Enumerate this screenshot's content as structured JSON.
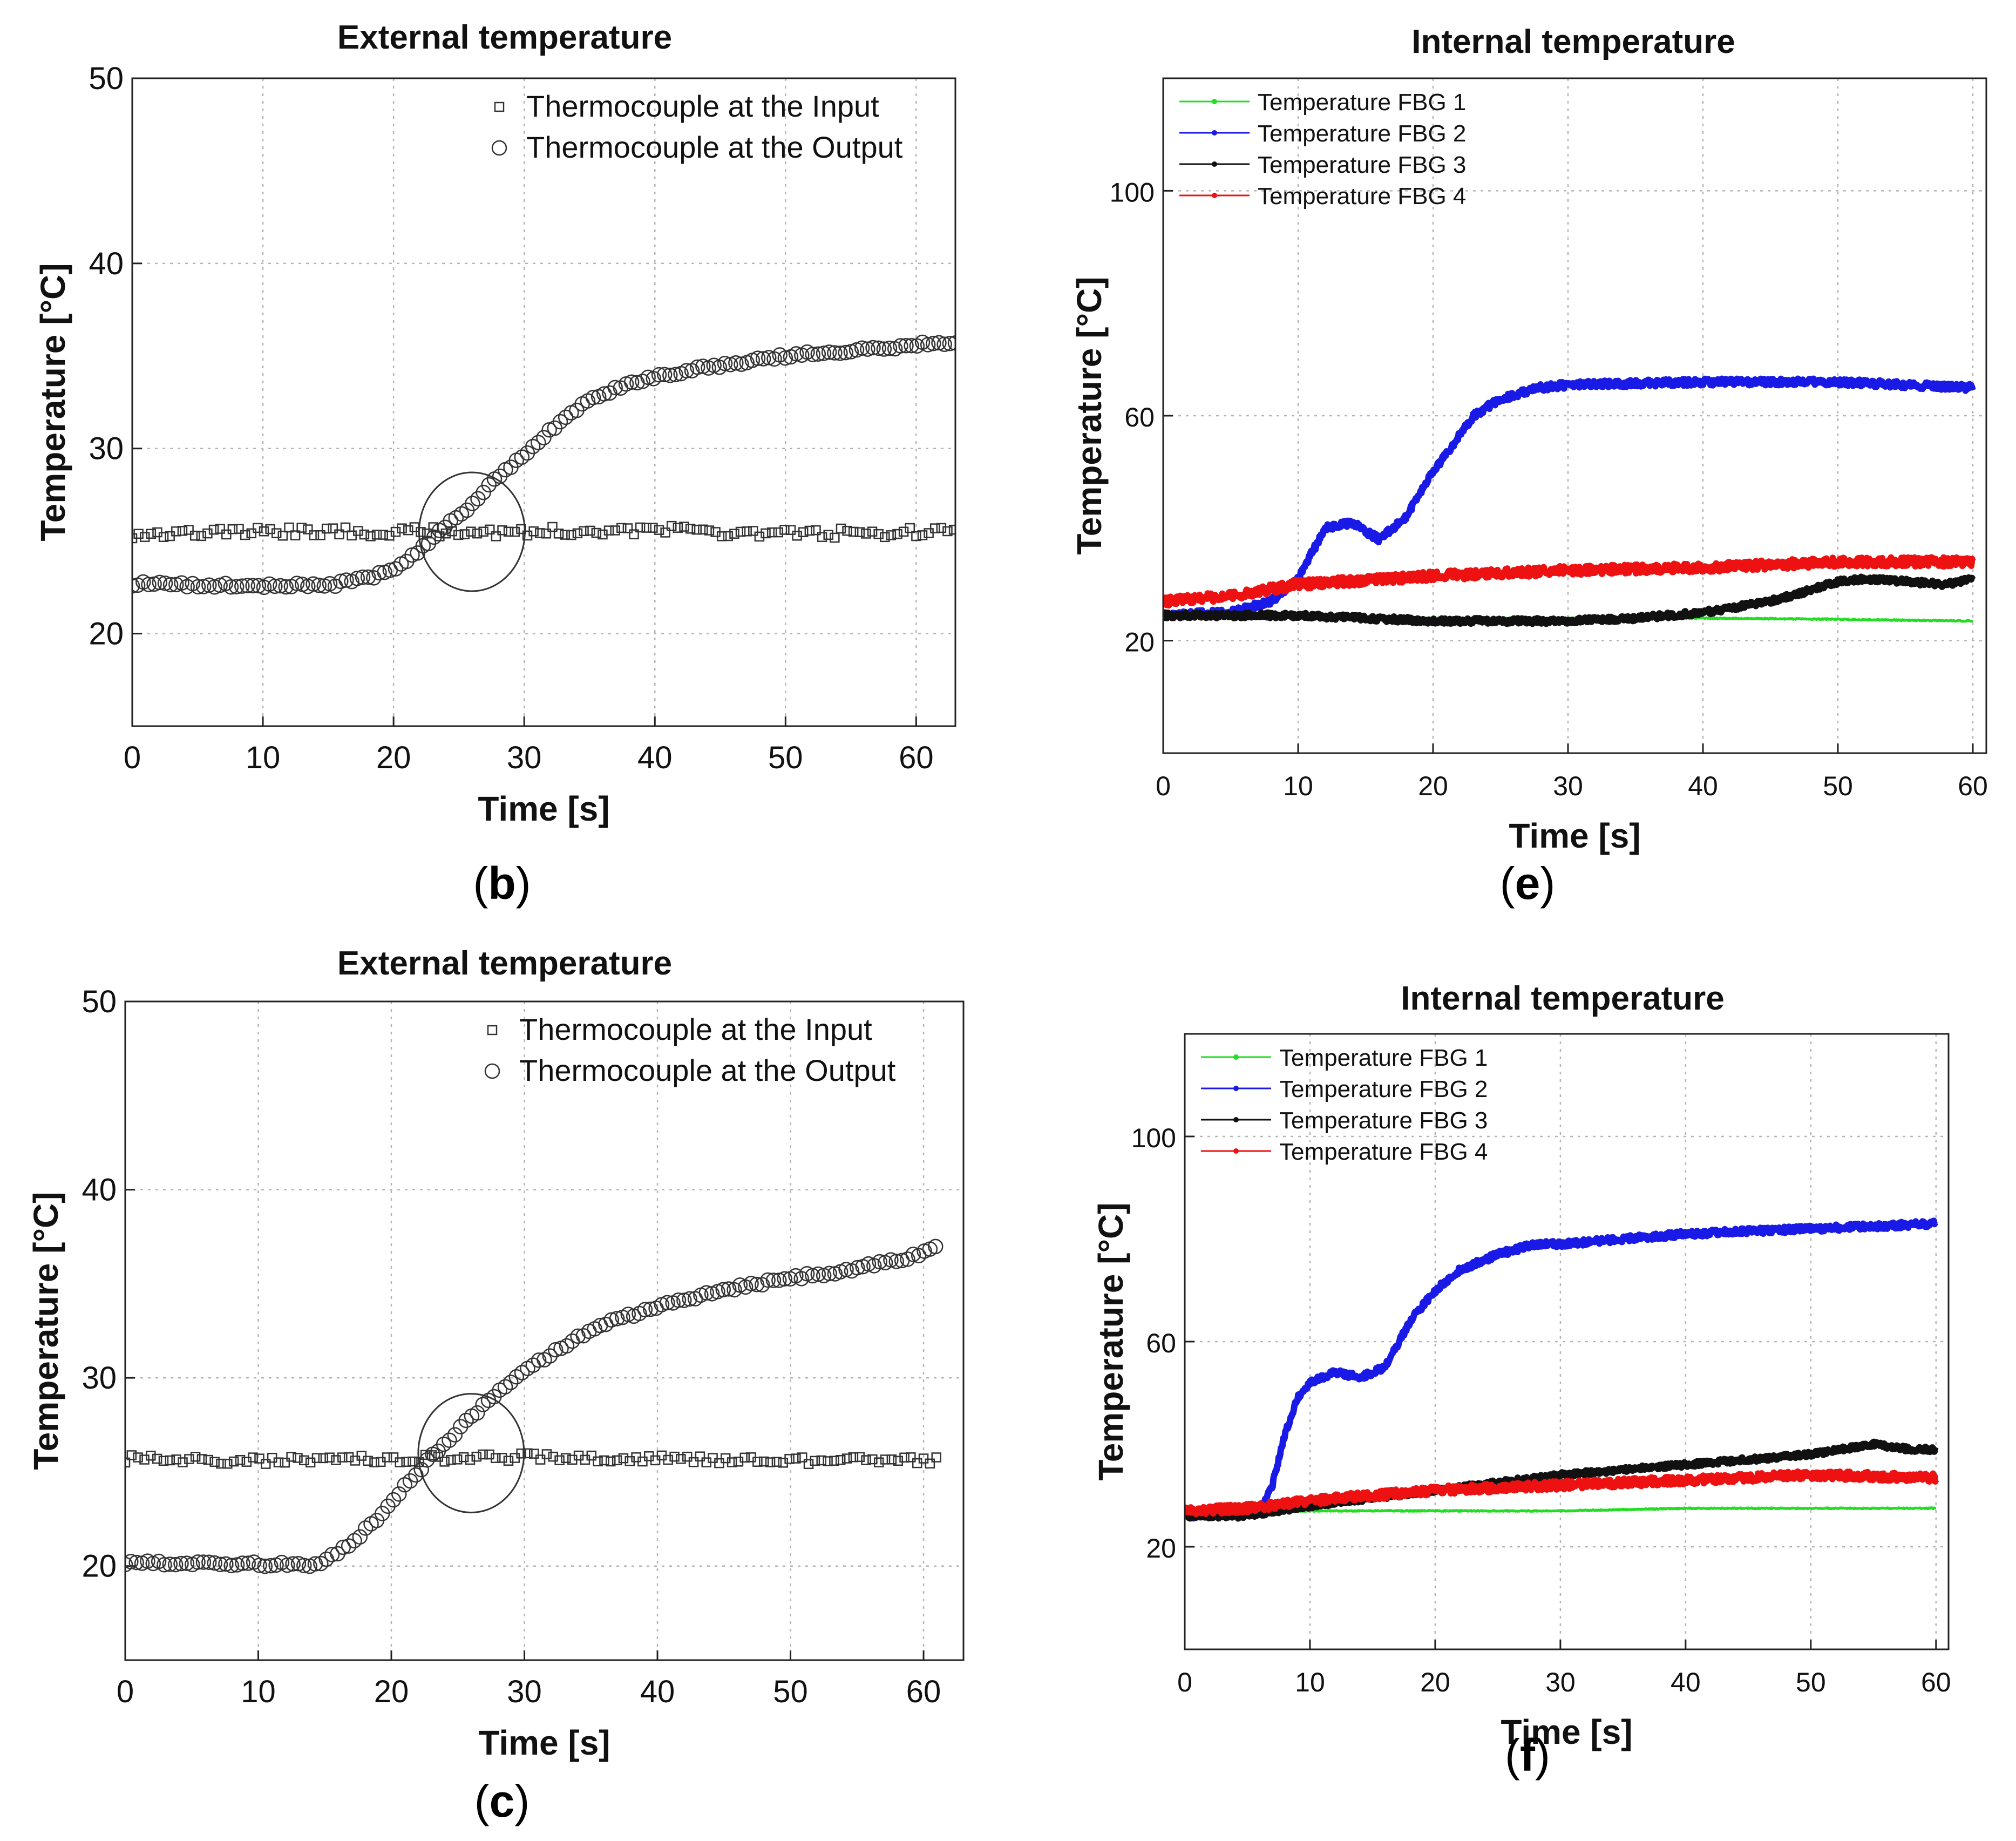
{
  "chart_data": [
    {
      "panel": "(b)",
      "type": "scatter",
      "title": "External temperature",
      "xlabel": "Time [s]",
      "ylabel": "Temperature [°C]",
      "xlim": [
        0,
        63
      ],
      "ylim": [
        15,
        50
      ],
      "xticks": [
        0,
        10,
        20,
        30,
        40,
        50,
        60
      ],
      "yticks": [
        20,
        30,
        40,
        50
      ],
      "grid": true,
      "legend_position": "top-right",
      "annotation": "circle marking intersection near t = 26 s",
      "annotation_center": [
        26,
        25.5
      ],
      "series": [
        {
          "name": "Thermocouple at the Input",
          "marker": "square",
          "color": "#333333",
          "x": [
            0,
            10,
            20,
            30,
            40,
            50,
            63
          ],
          "y": [
            25.4,
            25.5,
            25.5,
            25.5,
            25.6,
            25.4,
            25.5
          ],
          "noise": 0.25
        },
        {
          "name": "Thermocouple at the Output",
          "marker": "circle",
          "color": "#333333",
          "x": [
            0,
            5,
            10,
            15,
            18,
            20,
            22,
            24,
            26,
            28,
            30,
            32,
            35,
            38,
            40,
            45,
            50,
            55,
            60,
            63
          ],
          "y": [
            22.7,
            22.6,
            22.6,
            22.6,
            23.0,
            23.4,
            24.5,
            25.8,
            27.0,
            28.5,
            29.7,
            31.0,
            32.6,
            33.5,
            33.9,
            34.5,
            35.0,
            35.3,
            35.6,
            35.8
          ],
          "noise": 0.12
        }
      ]
    },
    {
      "panel": "(e)",
      "type": "line",
      "title": "Internal temperature",
      "xlabel": "Time [s]",
      "ylabel": "Temperature [°C]",
      "xlim": [
        0,
        61
      ],
      "ylim": [
        0,
        120
      ],
      "xticks": [
        0,
        10,
        20,
        30,
        40,
        50,
        60
      ],
      "yticks": [
        20,
        60,
        100
      ],
      "grid": true,
      "legend_position": "top-left",
      "series": [
        {
          "name": "Temperature FBG 1",
          "color": "#22dd22",
          "width": 5,
          "x": [
            0,
            10,
            20,
            30,
            40,
            50,
            60
          ],
          "y": [
            24.5,
            24.2,
            24,
            24,
            24,
            23.8,
            23.5
          ],
          "noise": 0.1
        },
        {
          "name": "Temperature FBG 2",
          "color": "#1a1ae6",
          "width": 12,
          "x": [
            0,
            5,
            8,
            10,
            12,
            14,
            16,
            18,
            20,
            23,
            25,
            28,
            30,
            40,
            50,
            60
          ],
          "y": [
            24.5,
            25,
            27,
            31,
            40,
            41,
            38,
            42,
            50,
            60,
            63,
            65,
            65.5,
            66,
            66,
            65
          ],
          "noise": 0.6
        },
        {
          "name": "Temperature FBG 3",
          "color": "#111111",
          "width": 12,
          "x": [
            0,
            10,
            20,
            30,
            35,
            40,
            45,
            48,
            50,
            52,
            55,
            58,
            60
          ],
          "y": [
            24.5,
            24.5,
            23.5,
            23.5,
            24,
            25,
            27,
            29,
            30.5,
            31,
            30.5,
            30,
            31
          ],
          "noise": 0.5
        },
        {
          "name": "Temperature FBG 4",
          "color": "#ee1111",
          "width": 12,
          "x": [
            0,
            5,
            10,
            20,
            30,
            40,
            50,
            60
          ],
          "y": [
            27,
            28,
            30,
            31.5,
            32.5,
            33,
            34,
            34
          ],
          "noise": 0.8
        }
      ]
    },
    {
      "panel": "(c)",
      "type": "scatter",
      "title": "External temperature",
      "xlabel": "Time [s]",
      "ylabel": "Temperature [°C]",
      "xlim": [
        0,
        63
      ],
      "ylim": [
        15,
        50
      ],
      "xticks": [
        0,
        10,
        20,
        30,
        40,
        50,
        60
      ],
      "yticks": [
        20,
        30,
        40,
        50
      ],
      "grid": true,
      "legend_position": "top-right",
      "annotation": "circle marking intersection near t = 26 s",
      "annotation_center": [
        26,
        26
      ],
      "series": [
        {
          "name": "Thermocouple at the Input",
          "marker": "square",
          "color": "#333333",
          "x": [
            0,
            10,
            20,
            30,
            40,
            50,
            61
          ],
          "y": [
            25.7,
            25.6,
            25.7,
            25.8,
            25.7,
            25.6,
            25.6
          ],
          "noise": 0.2
        },
        {
          "name": "Thermocouple at the Output",
          "marker": "circle",
          "color": "#333333",
          "x": [
            0,
            5,
            10,
            14,
            15,
            17,
            19,
            21,
            23,
            25,
            27,
            29,
            31,
            35,
            40,
            45,
            50,
            55,
            60,
            61
          ],
          "y": [
            20.2,
            20.1,
            20.1,
            20.1,
            20.3,
            21.2,
            22.6,
            24.2,
            25.8,
            27.2,
            28.6,
            29.8,
            30.8,
            32.6,
            33.8,
            34.7,
            35.3,
            35.8,
            36.6,
            37
          ],
          "noise": 0.12
        }
      ]
    },
    {
      "panel": "(f)",
      "type": "line",
      "title": "Internal temperature",
      "xlabel": "Time [s]",
      "ylabel": "Temperature [°C]",
      "xlim": [
        0,
        61
      ],
      "ylim": [
        0,
        120
      ],
      "xticks": [
        0,
        10,
        20,
        30,
        40,
        50,
        60
      ],
      "yticks": [
        20,
        60,
        100
      ],
      "grid": true,
      "legend_position": "top-left",
      "series": [
        {
          "name": "Temperature FBG 1",
          "color": "#22dd22",
          "width": 5,
          "x": [
            0,
            6,
            10,
            20,
            30,
            40,
            50,
            60
          ],
          "y": [
            26,
            27,
            27,
            27,
            27,
            27.5,
            27.5,
            27.5
          ],
          "noise": 0.1
        },
        {
          "name": "Temperature FBG 2",
          "color": "#1a1ae6",
          "width": 12,
          "x": [
            0,
            6,
            7,
            8,
            9,
            10,
            12,
            14,
            16,
            18,
            20,
            22,
            25,
            28,
            30,
            40,
            50,
            60
          ],
          "y": [
            26,
            27,
            32,
            42,
            49,
            52,
            54,
            53,
            55,
            64,
            70,
            74,
            77,
            79,
            79,
            81,
            82,
            83
          ],
          "noise": 0.6
        },
        {
          "name": "Temperature FBG 3",
          "color": "#111111",
          "width": 12,
          "x": [
            0,
            5,
            10,
            20,
            30,
            40,
            45,
            50,
            55,
            58,
            60
          ],
          "y": [
            26,
            26,
            28,
            31,
            34,
            36,
            37,
            38,
            40,
            39,
            39
          ],
          "noise": 0.5
        },
        {
          "name": "Temperature FBG 4",
          "color": "#ee1111",
          "width": 12,
          "x": [
            0,
            5,
            10,
            20,
            30,
            40,
            50,
            60
          ],
          "y": [
            27,
            27.5,
            29,
            31,
            32,
            33,
            34,
            33.5
          ],
          "noise": 0.8
        }
      ]
    }
  ],
  "panel_labels": [
    "(b)",
    "(e)",
    "(c)",
    "(f)"
  ],
  "panel_letters": [
    "b",
    "e",
    "c",
    "f"
  ]
}
